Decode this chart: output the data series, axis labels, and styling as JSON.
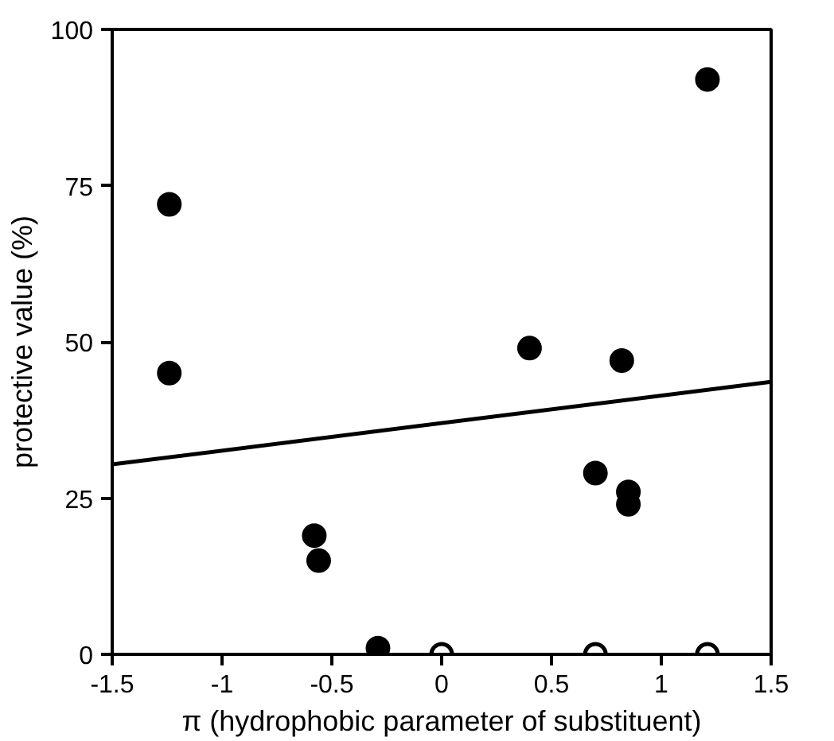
{
  "chart_data": {
    "type": "scatter",
    "xlabel": "π (hydrophobic parameter of substituent)",
    "ylabel": "protective value (%)",
    "xlim": [
      -1.5,
      1.5
    ],
    "xticks": [
      -1.5,
      -1,
      -0.5,
      0,
      0.5,
      1,
      1.5
    ],
    "ylim": [
      0,
      100
    ],
    "yticks": [
      0,
      25,
      50,
      75,
      100
    ],
    "grid": false,
    "marker": "circle",
    "series": [
      {
        "type": "line",
        "marker": "none",
        "color": "#000000",
        "x": [
          -1.5,
          1.5
        ],
        "values": [
          30.4,
          43.6
        ]
      },
      {
        "color": "#000000",
        "x": [
          -1.24,
          -1.24,
          -0.58,
          -0.56,
          -0.29,
          1.21,
          0.4,
          0.82,
          0.7,
          0.85,
          0.85
        ],
        "values": [
          72,
          45,
          19,
          15,
          1,
          92,
          49,
          47,
          29,
          26,
          24
        ]
      },
      {
        "color": "#ffffff",
        "x": [
          0,
          0.7,
          1.21
        ],
        "values": [
          0,
          0,
          0
        ]
      }
    ]
  }
}
